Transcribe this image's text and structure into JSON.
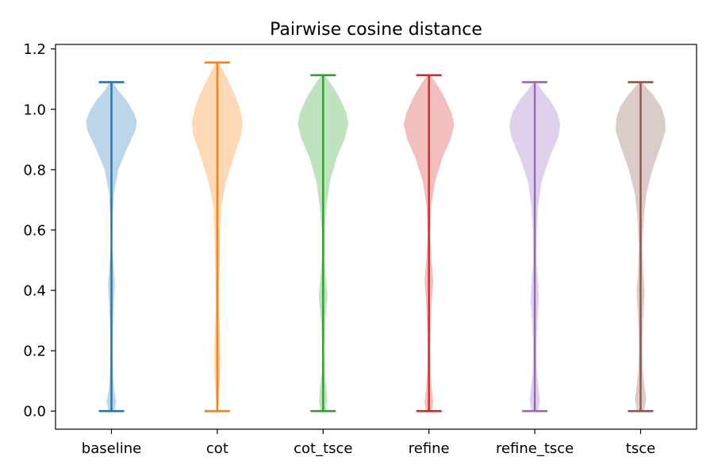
{
  "chart_data": {
    "type": "violin",
    "title": "Pairwise cosine distance",
    "xlabel": "",
    "ylabel": "",
    "ylim": [
      -0.06,
      1.215
    ],
    "y_ticks": [
      "0.0",
      "0.2",
      "0.4",
      "0.6",
      "0.8",
      "1.0",
      "1.2"
    ],
    "grid": false,
    "series": [
      {
        "name": "baseline",
        "color": "#1f77b4",
        "min": 0.0,
        "max": 1.09,
        "density": [
          [
            0.0,
            0.09
          ],
          [
            0.03,
            0.14
          ],
          [
            0.07,
            0.08
          ],
          [
            0.12,
            0.05
          ],
          [
            0.2,
            0.04
          ],
          [
            0.3,
            0.05
          ],
          [
            0.36,
            0.07
          ],
          [
            0.42,
            0.1
          ],
          [
            0.47,
            0.07
          ],
          [
            0.55,
            0.02
          ],
          [
            0.65,
            0.04
          ],
          [
            0.72,
            0.07
          ],
          [
            0.8,
            0.2
          ],
          [
            0.87,
            0.46
          ],
          [
            0.93,
            0.71
          ],
          [
            0.96,
            0.75
          ],
          [
            0.99,
            0.66
          ],
          [
            1.03,
            0.44
          ],
          [
            1.06,
            0.22
          ],
          [
            1.09,
            0.04
          ]
        ]
      },
      {
        "name": "cot",
        "color": "#ff7f0e",
        "min": 0.0,
        "max": 1.155,
        "density": [
          [
            0.0,
            0.02
          ],
          [
            0.05,
            0.05
          ],
          [
            0.15,
            0.1
          ],
          [
            0.22,
            0.09
          ],
          [
            0.35,
            0.05
          ],
          [
            0.5,
            0.07
          ],
          [
            0.6,
            0.09
          ],
          [
            0.68,
            0.12
          ],
          [
            0.76,
            0.26
          ],
          [
            0.84,
            0.48
          ],
          [
            0.92,
            0.72
          ],
          [
            0.96,
            0.75
          ],
          [
            1.01,
            0.65
          ],
          [
            1.06,
            0.47
          ],
          [
            1.11,
            0.25
          ],
          [
            1.155,
            0.04
          ]
        ]
      },
      {
        "name": "cot_tsce",
        "color": "#2ca02c",
        "min": 0.0,
        "max": 1.113,
        "density": [
          [
            0.0,
            0.07
          ],
          [
            0.03,
            0.12
          ],
          [
            0.07,
            0.1
          ],
          [
            0.13,
            0.04
          ],
          [
            0.22,
            0.03
          ],
          [
            0.3,
            0.06
          ],
          [
            0.38,
            0.13
          ],
          [
            0.43,
            0.09
          ],
          [
            0.5,
            0.04
          ],
          [
            0.6,
            0.04
          ],
          [
            0.68,
            0.1
          ],
          [
            0.76,
            0.2
          ],
          [
            0.84,
            0.4
          ],
          [
            0.9,
            0.63
          ],
          [
            0.95,
            0.75
          ],
          [
            0.99,
            0.68
          ],
          [
            1.04,
            0.48
          ],
          [
            1.08,
            0.26
          ],
          [
            1.113,
            0.05
          ]
        ]
      },
      {
        "name": "refine",
        "color": "#d62728",
        "min": 0.0,
        "max": 1.113,
        "density": [
          [
            0.0,
            0.09
          ],
          [
            0.03,
            0.13
          ],
          [
            0.07,
            0.09
          ],
          [
            0.13,
            0.05
          ],
          [
            0.22,
            0.04
          ],
          [
            0.3,
            0.06
          ],
          [
            0.37,
            0.09
          ],
          [
            0.43,
            0.13
          ],
          [
            0.5,
            0.08
          ],
          [
            0.58,
            0.04
          ],
          [
            0.68,
            0.07
          ],
          [
            0.76,
            0.18
          ],
          [
            0.84,
            0.4
          ],
          [
            0.9,
            0.64
          ],
          [
            0.95,
            0.75
          ],
          [
            0.99,
            0.66
          ],
          [
            1.04,
            0.46
          ],
          [
            1.08,
            0.25
          ],
          [
            1.113,
            0.05
          ]
        ]
      },
      {
        "name": "refine_tsce",
        "color": "#9467bd",
        "min": 0.0,
        "max": 1.09,
        "density": [
          [
            0.0,
            0.09
          ],
          [
            0.03,
            0.15
          ],
          [
            0.07,
            0.12
          ],
          [
            0.13,
            0.06
          ],
          [
            0.22,
            0.05
          ],
          [
            0.3,
            0.08
          ],
          [
            0.37,
            0.12
          ],
          [
            0.42,
            0.1
          ],
          [
            0.5,
            0.05
          ],
          [
            0.6,
            0.06
          ],
          [
            0.68,
            0.1
          ],
          [
            0.76,
            0.2
          ],
          [
            0.84,
            0.44
          ],
          [
            0.91,
            0.7
          ],
          [
            0.95,
            0.75
          ],
          [
            0.99,
            0.66
          ],
          [
            1.03,
            0.45
          ],
          [
            1.06,
            0.23
          ],
          [
            1.09,
            0.04
          ]
        ]
      },
      {
        "name": "tsce",
        "color": "#8c564b",
        "min": 0.0,
        "max": 1.09,
        "density": [
          [
            0.0,
            0.1
          ],
          [
            0.04,
            0.17
          ],
          [
            0.08,
            0.12
          ],
          [
            0.14,
            0.06
          ],
          [
            0.22,
            0.05
          ],
          [
            0.3,
            0.07
          ],
          [
            0.36,
            0.1
          ],
          [
            0.4,
            0.12
          ],
          [
            0.45,
            0.08
          ],
          [
            0.55,
            0.05
          ],
          [
            0.65,
            0.1
          ],
          [
            0.72,
            0.17
          ],
          [
            0.8,
            0.35
          ],
          [
            0.87,
            0.57
          ],
          [
            0.93,
            0.74
          ],
          [
            0.97,
            0.72
          ],
          [
            1.01,
            0.6
          ],
          [
            1.05,
            0.35
          ],
          [
            1.09,
            0.04
          ]
        ]
      }
    ]
  }
}
